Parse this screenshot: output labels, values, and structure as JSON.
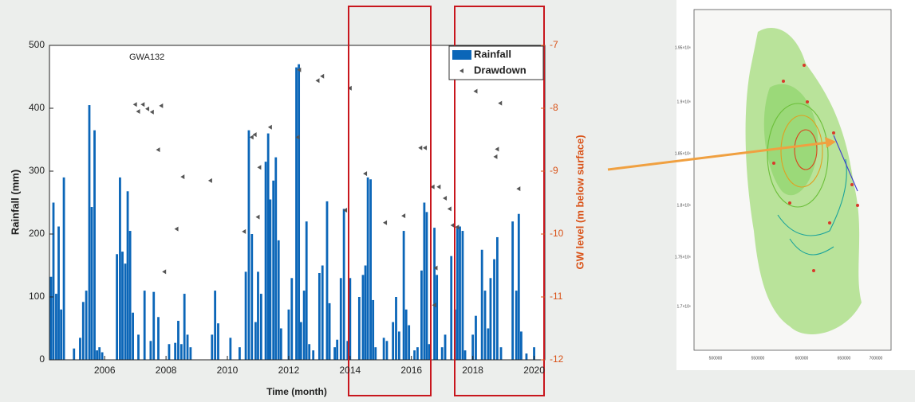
{
  "chart_data": {
    "type": "bar",
    "annotation": "GWA132",
    "xlabel": "Time (month)",
    "ylabel": "Rainfall (mm)",
    "y2label": "GW level (m below surface)",
    "xlim": [
      2004.2,
      2020.35
    ],
    "xticks": [
      2006,
      2008,
      2010,
      2012,
      2014,
      2016,
      2018,
      2020
    ],
    "ylim": [
      0,
      500
    ],
    "yticks": [
      0,
      100,
      200,
      300,
      400,
      500
    ],
    "y2lim": [
      -12,
      -7
    ],
    "y2ticks": [
      -12,
      -11,
      -10,
      -9,
      -8,
      -7
    ],
    "y2color": "#d95319",
    "legend": "upper right",
    "series": [
      {
        "name": "Rainfall",
        "type": "bar",
        "color": "#0b66b8",
        "x": [
          2004.25,
          2004.33,
          2004.42,
          2004.5,
          2004.58,
          2004.67,
          2005.0,
          2005.2,
          2005.3,
          2005.4,
          2005.5,
          2005.58,
          2005.67,
          2005.75,
          2005.83,
          2005.92,
          2006.4,
          2006.5,
          2006.58,
          2006.67,
          2006.75,
          2006.83,
          2006.92,
          2007.1,
          2007.3,
          2007.5,
          2007.6,
          2007.75,
          2008.1,
          2008.3,
          2008.4,
          2008.5,
          2008.6,
          2008.7,
          2008.8,
          2009.5,
          2009.6,
          2009.7,
          2010.1,
          2010.4,
          2010.6,
          2010.7,
          2010.8,
          2010.92,
          2011.0,
          2011.1,
          2011.25,
          2011.33,
          2011.4,
          2011.5,
          2011.58,
          2011.67,
          2011.75,
          2012.0,
          2012.1,
          2012.25,
          2012.33,
          2012.4,
          2012.5,
          2012.58,
          2012.67,
          2012.8,
          2013.0,
          2013.1,
          2013.25,
          2013.33,
          2013.5,
          2013.58,
          2013.7,
          2013.8,
          2013.92,
          2014.0,
          2014.3,
          2014.42,
          2014.5,
          2014.58,
          2014.67,
          2014.75,
          2014.83,
          2015.1,
          2015.2,
          2015.4,
          2015.5,
          2015.6,
          2015.75,
          2015.83,
          2015.92,
          2016.1,
          2016.2,
          2016.33,
          2016.42,
          2016.5,
          2016.58,
          2016.75,
          2016.83,
          2017.0,
          2017.1,
          2017.3,
          2017.42,
          2017.5,
          2017.58,
          2017.67,
          2017.75,
          2018.0,
          2018.1,
          2018.3,
          2018.4,
          2018.5,
          2018.58,
          2018.7,
          2018.8,
          2018.92,
          2019.3,
          2019.42,
          2019.5,
          2019.58,
          2019.75,
          2020.0
        ],
        "values": [
          132,
          250,
          105,
          212,
          80,
          290,
          18,
          35,
          92,
          110,
          405,
          243,
          365,
          15,
          20,
          12,
          168,
          290,
          172,
          153,
          268,
          205,
          75,
          40,
          110,
          30,
          108,
          68,
          25,
          27,
          62,
          25,
          105,
          40,
          20,
          40,
          110,
          58,
          35,
          20,
          140,
          365,
          200,
          60,
          140,
          105,
          315,
          360,
          255,
          285,
          322,
          190,
          50,
          80,
          130,
          465,
          470,
          60,
          110,
          220,
          25,
          15,
          138,
          150,
          252,
          90,
          20,
          32,
          130,
          240,
          30,
          130,
          100,
          135,
          150,
          290,
          287,
          95,
          20,
          35,
          30,
          60,
          100,
          45,
          205,
          80,
          55,
          15,
          20,
          142,
          250,
          235,
          25,
          210,
          135,
          20,
          40,
          165,
          80,
          210,
          212,
          205,
          15,
          40,
          70,
          175,
          110,
          50,
          130,
          160,
          195,
          20,
          220,
          110,
          232,
          45,
          10,
          20
        ]
      },
      {
        "name": "Drawdown",
        "type": "scatter",
        "axis": "y2",
        "color": "#555555",
        "x": [
          2007.0,
          2007.1,
          2007.25,
          2007.4,
          2007.55,
          2007.85,
          2007.75,
          2008.35,
          2008.55,
          2007.95,
          2009.45,
          2010.55,
          2010.8,
          2010.9,
          2011.05,
          2011.4,
          2011.0,
          2012.35,
          2012.3,
          2012.95,
          2013.1,
          2013.85,
          2014.0,
          2014.5,
          2015.15,
          2015.75,
          2016.3,
          2016.45,
          2016.7,
          2016.9,
          2017.1,
          2017.25,
          2017.35,
          2017.5,
          2016.8,
          2016.75,
          2018.1,
          2018.9,
          2018.8,
          2018.75,
          2019.5
        ],
        "values": [
          -7.94,
          -8.05,
          -7.94,
          -8.01,
          -8.06,
          -7.96,
          -8.66,
          -9.92,
          -9.09,
          -10.6,
          -9.15,
          -9.96,
          -8.46,
          -8.42,
          -8.94,
          -8.3,
          -9.73,
          -7.39,
          -8.46,
          -7.56,
          -7.49,
          -9.62,
          -7.68,
          -9.04,
          -9.82,
          -9.71,
          -8.63,
          -8.63,
          -9.25,
          -9.25,
          -9.43,
          -9.6,
          -9.86,
          -9.89,
          -10.54,
          -11.13,
          -7.73,
          -7.92,
          -8.65,
          -8.77,
          -9.28
        ]
      }
    ]
  },
  "map": {
    "yticks": [
      "1.95×10⁶",
      "1.9×10⁶",
      "1.85×10⁶",
      "1.8×10⁶",
      "1.75×10⁶",
      "1.7×10⁶"
    ],
    "xticks": [
      "500000",
      "550000",
      "600000",
      "650000",
      "700000"
    ]
  }
}
